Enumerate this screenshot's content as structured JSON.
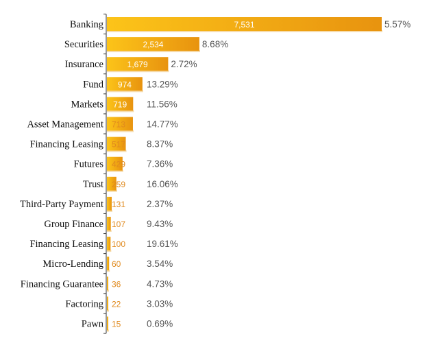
{
  "chart_data": {
    "type": "bar",
    "orientation": "horizontal",
    "categories": [
      "Banking",
      "Securities",
      "Insurance",
      "Fund",
      "Markets",
      "Asset Management",
      "Financing Leasing",
      "Futures",
      "Trust",
      "Third-Party Payment",
      "Group Finance",
      "Financing Leasing",
      "Micro-Lending",
      "Financing Guarantee",
      "Factoring",
      "Pawn"
    ],
    "values": [
      7531,
      2534,
      1679,
      974,
      719,
      713,
      517,
      429,
      259,
      131,
      107,
      100,
      60,
      36,
      22,
      15
    ],
    "value_labels": [
      "7,531",
      "2,534",
      "1,679",
      "974",
      "719",
      "713",
      "517",
      "429",
      "259",
      "131",
      "107",
      "100",
      "60",
      "36",
      "22",
      "15"
    ],
    "percentages": [
      "5.57%",
      "8.68%",
      "2.72%",
      "13.29%",
      "11.56%",
      "14.77%",
      "8.37%",
      "7.36%",
      "16.06%",
      "2.37%",
      "9.43%",
      "19.61%",
      "3.54%",
      "4.73%",
      "3.03%",
      "0.69%"
    ],
    "xlim": [
      0,
      7531
    ],
    "grid": false,
    "colors": {
      "bar_light": "#fcc419",
      "bar_dark": "#e8930f",
      "bar_shadow": "#f6dcae",
      "outside_label": "#e08a1e",
      "inside_label": "#ffffff",
      "percent_label": "#555555",
      "axis": "#333333"
    }
  }
}
